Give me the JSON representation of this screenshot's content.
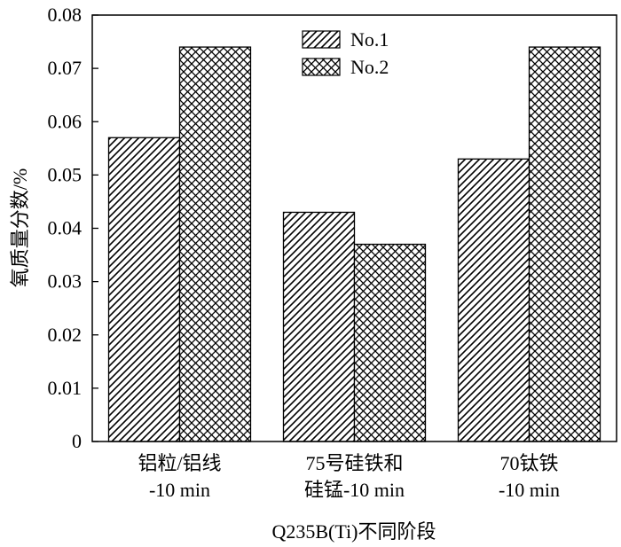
{
  "chart_data": {
    "type": "bar",
    "categories": [
      [
        "铝粒/铝线",
        "-10 min"
      ],
      [
        "75号硅铁和",
        "硅锰-10 min"
      ],
      [
        "70钛铁",
        "-10 min"
      ]
    ],
    "series": [
      {
        "name": "No.1",
        "pattern": "diagonal-hatch",
        "values": [
          0.057,
          0.043,
          0.053
        ]
      },
      {
        "name": "No.2",
        "pattern": "cross-hatch",
        "values": [
          0.074,
          0.037,
          0.074
        ]
      }
    ],
    "ylim": [
      0,
      0.08
    ],
    "yticks": [
      "0",
      "0.01",
      "0.02",
      "0.03",
      "0.04",
      "0.05",
      "0.06",
      "0.07",
      "0.08"
    ],
    "ylabel": "氧质量分数/%",
    "xlabel": "Q235B(Ti)不同阶段",
    "legend_position": "top-center",
    "grid": false
  }
}
